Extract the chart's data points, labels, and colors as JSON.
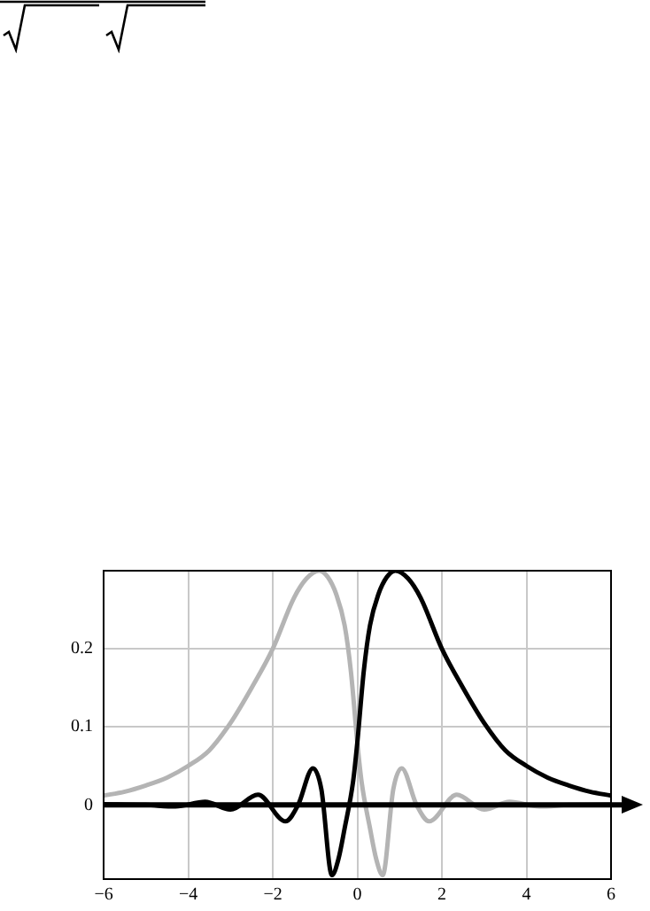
{
  "chart_data": {
    "type": "line",
    "series": [
      {
        "color": "#000000",
        "x": [
          -6,
          -5,
          -4.3,
          -3.6,
          -3,
          -2.35,
          -1.7,
          -1.4,
          -1.05,
          -0.85,
          -0.6,
          -0.45,
          -0.3,
          -0.1,
          0,
          0.15,
          0.3,
          0.5,
          0.7,
          0.9,
          1.2,
          1.5,
          2,
          2.5,
          3,
          3.5,
          4,
          4.5,
          5,
          5.5,
          6
        ],
        "values": [
          0.001,
          0,
          -0.002,
          0.004,
          -0.006,
          0.013,
          -0.021,
          0,
          0.047,
          0.02,
          -0.09,
          -0.07,
          -0.03,
          0.03,
          0.08,
          0.17,
          0.23,
          0.27,
          0.292,
          0.3,
          0.29,
          0.265,
          0.2,
          0.15,
          0.105,
          0.07,
          0.05,
          0.035,
          0.025,
          0.017,
          0.012
        ]
      },
      {
        "color": "#b4b4b4",
        "x": [
          -6,
          -5.5,
          -5,
          -4.5,
          -4,
          -3.5,
          -3,
          -2.5,
          -2,
          -1.5,
          -1.2,
          -0.9,
          -0.7,
          -0.5,
          -0.3,
          -0.15,
          0,
          0.1,
          0.3,
          0.45,
          0.6,
          0.85,
          1.05,
          1.4,
          1.7,
          2.35,
          3,
          3.6,
          4.3,
          5,
          6
        ],
        "values": [
          0.012,
          0.017,
          0.025,
          0.035,
          0.05,
          0.07,
          0.105,
          0.15,
          0.2,
          0.265,
          0.29,
          0.3,
          0.292,
          0.27,
          0.23,
          0.17,
          0.08,
          0.03,
          -0.03,
          -0.07,
          -0.09,
          0.02,
          0.047,
          0,
          -0.021,
          0.013,
          -0.006,
          0.004,
          -0.002,
          0,
          0.001
        ]
      }
    ],
    "xlim": [
      -6,
      6
    ],
    "xticks": [
      -6,
      -4,
      -2,
      0,
      2,
      4,
      6
    ],
    "ylim": [
      -0.095,
      0.3
    ],
    "yticks": [
      0,
      0.1,
      0.2
    ],
    "grid": true,
    "legend": false,
    "marker": "none",
    "line_style": "solid",
    "ref_lines": [
      {
        "axis": "y",
        "value": 0,
        "color": "#000000"
      }
    ]
  }
}
